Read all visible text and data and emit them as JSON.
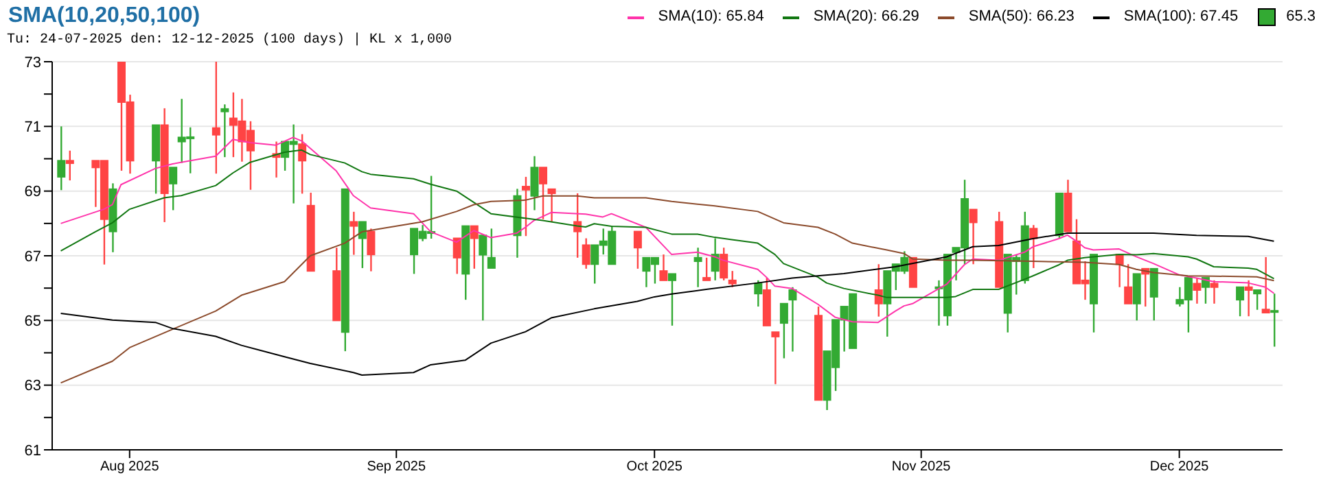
{
  "chart_data": {
    "type": "candlestick",
    "title": "SMA(10,20,50,100)",
    "subtitle": "Tu: 24-07-2025 den: 12-12-2025 (100 days) | KL x 1,000",
    "legend": "top right",
    "grid": "y",
    "marker": "none",
    "xlim": [
      "2025-07-23",
      "2025-12-13"
    ],
    "xticks": [
      {
        "value": "2025-08-01",
        "label": "Aug 2025"
      },
      {
        "value": "2025-09-01",
        "label": "Sep 2025"
      },
      {
        "value": "2025-10-01",
        "label": "Oct 2025"
      },
      {
        "value": "2025-11-01",
        "label": "Nov 2025"
      },
      {
        "value": "2025-12-01",
        "label": "Dec 2025"
      }
    ],
    "ylim": [
      61,
      73
    ],
    "yticks": [
      61,
      {
        "value": 62,
        "label": null
      },
      63,
      {
        "value": 64,
        "label": null
      },
      65,
      {
        "value": 66,
        "label": null
      },
      67,
      {
        "value": 68,
        "label": null
      },
      69,
      {
        "value": 70,
        "label": null
      },
      71,
      {
        "value": 72,
        "label": null
      },
      73
    ],
    "series": [
      {
        "name": "65.3",
        "type": "candlestick",
        "color": "#33aa33",
        "x": [
          "2025-07-24",
          "2025-07-25",
          "2025-07-28",
          "2025-07-29",
          "2025-07-30",
          "2025-07-31",
          "2025-08-01",
          "2025-08-04",
          "2025-08-05",
          "2025-08-06",
          "2025-08-07",
          "2025-08-08",
          "2025-08-11",
          "2025-08-12",
          "2025-08-13",
          "2025-08-14",
          "2025-08-15",
          "2025-08-18",
          "2025-08-19",
          "2025-08-20",
          "2025-08-21",
          "2025-08-22",
          "2025-08-25",
          "2025-08-26",
          "2025-08-27",
          "2025-08-28",
          "2025-08-29",
          "2025-09-03",
          "2025-09-04",
          "2025-09-05",
          "2025-09-08",
          "2025-09-09",
          "2025-09-10",
          "2025-09-11",
          "2025-09-12",
          "2025-09-15",
          "2025-09-16",
          "2025-09-17",
          "2025-09-18",
          "2025-09-19",
          "2025-09-22",
          "2025-09-23",
          "2025-09-24",
          "2025-09-25",
          "2025-09-26",
          "2025-09-29",
          "2025-09-30",
          "2025-10-01",
          "2025-10-02",
          "2025-10-03",
          "2025-10-06",
          "2025-10-07",
          "2025-10-08",
          "2025-10-09",
          "2025-10-10",
          "2025-10-13",
          "2025-10-14",
          "2025-10-15",
          "2025-10-16",
          "2025-10-17",
          "2025-10-20",
          "2025-10-21",
          "2025-10-22",
          "2025-10-23",
          "2025-10-24",
          "2025-10-27",
          "2025-10-28",
          "2025-10-29",
          "2025-10-30",
          "2025-10-31",
          "2025-11-03",
          "2025-11-04",
          "2025-11-05",
          "2025-11-06",
          "2025-11-07",
          "2025-11-10",
          "2025-11-11",
          "2025-11-12",
          "2025-11-13",
          "2025-11-14",
          "2025-11-17",
          "2025-11-18",
          "2025-11-19",
          "2025-11-20",
          "2025-11-21",
          "2025-11-24",
          "2025-11-25",
          "2025-11-26",
          "2025-11-27",
          "2025-11-28",
          "2025-12-01",
          "2025-12-02",
          "2025-12-03",
          "2025-12-04",
          "2025-12-05",
          "2025-12-08",
          "2025-12-09",
          "2025-12-10",
          "2025-12-11",
          "2025-12-12"
        ],
        "ohlc": [
          [
            69.44,
            71.0,
            69.03,
            69.94
          ],
          [
            69.94,
            70.25,
            69.33,
            69.86
          ],
          [
            69.94,
            69.94,
            68.51,
            69.73
          ],
          [
            69.94,
            69.94,
            66.73,
            68.13
          ],
          [
            67.75,
            69.24,
            67.11,
            69.06
          ],
          [
            73.0,
            73.0,
            69.63,
            71.75
          ],
          [
            71.75,
            71.98,
            69.54,
            69.94
          ],
          [
            69.94,
            71.04,
            68.92,
            71.04
          ],
          [
            71.04,
            71.56,
            68.04,
            68.93
          ],
          [
            69.23,
            69.73,
            68.41,
            69.73
          ],
          [
            70.53,
            71.85,
            69.87,
            70.66
          ],
          [
            70.66,
            70.97,
            69.55,
            70.67
          ],
          [
            70.95,
            73.0,
            69.54,
            70.74
          ],
          [
            71.46,
            71.68,
            70.05,
            71.54
          ],
          [
            71.25,
            72.05,
            70.05,
            71.04
          ],
          [
            71.16,
            71.85,
            69.91,
            70.53
          ],
          [
            70.87,
            71.16,
            69.04,
            70.25
          ],
          [
            70.15,
            70.53,
            69.42,
            70.05
          ],
          [
            70.05,
            70.53,
            69.63,
            70.53
          ],
          [
            70.45,
            71.06,
            68.62,
            70.53
          ],
          [
            70.45,
            70.76,
            68.92,
            69.94
          ],
          [
            68.55,
            68.95,
            66.53,
            66.53
          ],
          [
            66.53,
            67.25,
            65.0,
            65.0
          ],
          [
            64.64,
            69.06,
            64.05,
            69.06
          ],
          [
            68.05,
            68.36,
            67.03,
            67.92
          ],
          [
            67.54,
            68.05,
            66.62,
            68.05
          ],
          [
            67.75,
            67.84,
            66.52,
            67.04
          ],
          [
            67.04,
            67.84,
            66.44,
            67.84
          ],
          [
            67.54,
            67.95,
            67.45,
            67.75
          ],
          [
            67.74,
            69.47,
            67.53,
            67.74
          ],
          [
            67.54,
            67.54,
            66.44,
            66.94
          ],
          [
            66.44,
            67.92,
            65.64,
            67.92
          ],
          [
            67.92,
            67.92,
            66.6,
            67.54
          ],
          [
            67.03,
            67.63,
            65.0,
            67.63
          ],
          [
            66.62,
            67.84,
            66.62,
            66.94
          ],
          [
            67.63,
            69.07,
            66.94,
            68.85
          ],
          [
            69.14,
            69.44,
            67.61,
            69.04
          ],
          [
            68.85,
            70.08,
            68.41,
            69.73
          ],
          [
            69.73,
            69.73,
            68.13,
            69.23
          ],
          [
            69.06,
            69.06,
            68.04,
            68.93
          ],
          [
            68.05,
            68.93,
            66.94,
            67.75
          ],
          [
            67.33,
            67.54,
            66.6,
            66.74
          ],
          [
            66.74,
            67.33,
            66.14,
            67.33
          ],
          [
            67.33,
            67.84,
            67.04,
            67.45
          ],
          [
            66.74,
            67.92,
            66.74,
            67.75
          ],
          [
            67.75,
            67.75,
            66.6,
            67.25
          ],
          [
            66.53,
            66.94,
            66.03,
            66.94
          ],
          [
            66.74,
            66.94,
            66.14,
            66.94
          ],
          [
            66.53,
            67.04,
            66.24,
            66.24
          ],
          [
            66.24,
            66.44,
            64.84,
            66.44
          ],
          [
            66.83,
            67.25,
            66.03,
            66.94
          ],
          [
            66.32,
            66.94,
            66.24,
            66.24
          ],
          [
            66.53,
            67.54,
            66.24,
            67.04
          ],
          [
            67.04,
            67.25,
            66.24,
            66.32
          ],
          [
            66.24,
            66.53,
            66.03,
            66.14
          ],
          [
            65.83,
            66.24,
            65.43,
            66.14
          ],
          [
            65.94,
            66.32,
            64.84,
            64.84
          ],
          [
            64.64,
            64.64,
            63.03,
            64.5
          ],
          [
            64.92,
            65.52,
            63.83,
            65.52
          ],
          [
            65.64,
            66.03,
            64.04,
            65.94
          ],
          [
            65.15,
            65.43,
            62.54,
            62.54
          ],
          [
            62.54,
            64.05,
            62.23,
            64.05
          ],
          [
            63.55,
            65.02,
            62.82,
            65.02
          ],
          [
            65.02,
            65.43,
            64.04,
            65.43
          ],
          [
            64.14,
            65.82,
            64.14,
            65.82
          ],
          [
            65.94,
            66.74,
            65.12,
            65.52
          ],
          [
            65.52,
            66.53,
            64.5,
            66.53
          ],
          [
            66.53,
            66.74,
            65.94,
            66.74
          ],
          [
            66.53,
            67.14,
            66.44,
            66.94
          ],
          [
            66.94,
            66.94,
            66.03,
            66.03
          ],
          [
            66.03,
            66.24,
            64.84,
            66.03
          ],
          [
            65.15,
            67.04,
            64.84,
            67.04
          ],
          [
            67.11,
            67.25,
            66.24,
            67.25
          ],
          [
            67.25,
            69.35,
            66.74,
            68.76
          ],
          [
            68.43,
            68.43,
            66.74,
            68.03
          ],
          [
            68.05,
            68.36,
            66.03,
            66.03
          ],
          [
            65.23,
            67.04,
            64.63,
            67.04
          ],
          [
            66.83,
            67.04,
            65.8,
            66.94
          ],
          [
            66.24,
            68.36,
            66.14,
            67.92
          ],
          [
            67.84,
            67.95,
            66.62,
            67.54
          ],
          [
            67.63,
            68.93,
            67.54,
            68.93
          ],
          [
            68.93,
            69.35,
            67.75,
            67.75
          ],
          [
            67.45,
            68.13,
            66.14,
            66.14
          ],
          [
            66.24,
            66.83,
            65.64,
            66.14
          ],
          [
            65.52,
            67.04,
            64.63,
            67.04
          ],
          [
            67.04,
            67.04,
            66.03,
            66.74
          ],
          [
            66.03,
            66.74,
            65.52,
            65.52
          ],
          [
            65.52,
            66.44,
            65.0,
            66.44
          ],
          [
            66.6,
            66.6,
            65.43,
            66.44
          ],
          [
            65.73,
            66.6,
            65.0,
            66.6
          ],
          [
            65.52,
            66.03,
            65.43,
            65.64
          ],
          [
            65.64,
            66.32,
            64.63,
            66.32
          ],
          [
            66.14,
            66.32,
            65.52,
            65.94
          ],
          [
            66.03,
            66.32,
            65.52,
            66.32
          ],
          [
            66.14,
            66.24,
            65.52,
            66.03
          ],
          [
            65.64,
            66.03,
            65.13,
            66.03
          ],
          [
            66.03,
            66.24,
            65.13,
            65.94
          ],
          [
            65.83,
            65.94,
            65.33,
            65.94
          ],
          [
            65.34,
            66.96,
            65.24,
            65.24
          ],
          [
            65.3,
            65.83,
            64.19,
            65.3
          ]
        ],
        "colors": [
          "#33aa33",
          "#ff4444",
          "#ff4444",
          "#ff4444",
          "#33aa33",
          "#ff4444",
          "#ff4444",
          "#33aa33",
          "#ff4444",
          "#33aa33",
          "#33aa33",
          "#33aa33",
          "#ff4444",
          "#33aa33",
          "#ff4444",
          "#ff4444",
          "#ff4444",
          "#ff4444",
          "#33aa33",
          "#33aa33",
          "#ff4444",
          "#ff4444",
          "#ff4444",
          "#33aa33",
          "#ff4444",
          "#33aa33",
          "#ff4444",
          "#33aa33",
          "#33aa33",
          "#33aa33",
          "#ff4444",
          "#33aa33",
          "#ff4444",
          "#33aa33",
          "#33aa33",
          "#33aa33",
          "#ff4444",
          "#33aa33",
          "#ff4444",
          "#ff4444",
          "#ff4444",
          "#ff4444",
          "#33aa33",
          "#33aa33",
          "#33aa33",
          "#ff4444",
          "#33aa33",
          "#33aa33",
          "#ff4444",
          "#33aa33",
          "#33aa33",
          "#ff4444",
          "#33aa33",
          "#ff4444",
          "#ff4444",
          "#33aa33",
          "#ff4444",
          "#ff4444",
          "#33aa33",
          "#33aa33",
          "#ff4444",
          "#33aa33",
          "#33aa33",
          "#33aa33",
          "#33aa33",
          "#ff4444",
          "#33aa33",
          "#33aa33",
          "#33aa33",
          "#ff4444",
          "#33aa33",
          "#33aa33",
          "#33aa33",
          "#33aa33",
          "#ff4444",
          "#ff4444",
          "#33aa33",
          "#33aa33",
          "#33aa33",
          "#ff4444",
          "#33aa33",
          "#ff4444",
          "#ff4444",
          "#ff4444",
          "#33aa33",
          "#ff4444",
          "#ff4444",
          "#33aa33",
          "#ff4444",
          "#33aa33",
          "#33aa33",
          "#33aa33",
          "#ff4444",
          "#33aa33",
          "#ff4444",
          "#33aa33",
          "#ff4444",
          "#33aa33",
          "#ff4444",
          "#33aa33"
        ]
      },
      {
        "name": "SMA(10): 65.84",
        "type": "line",
        "color": "#ff33aa",
        "x": [
          "2025-07-24",
          "2025-07-29",
          "2025-07-30",
          "2025-07-31",
          "2025-08-04",
          "2025-08-06",
          "2025-08-11",
          "2025-08-13",
          "2025-08-15",
          "2025-08-18",
          "2025-08-20",
          "2025-08-21",
          "2025-08-25",
          "2025-08-27",
          "2025-08-29",
          "2025-09-03",
          "2025-09-05",
          "2025-09-08",
          "2025-09-09",
          "2025-09-10",
          "2025-09-12",
          "2025-09-15",
          "2025-09-16",
          "2025-09-17",
          "2025-09-19",
          "2025-09-23",
          "2025-09-25",
          "2025-09-26",
          "2025-09-30",
          "2025-10-02",
          "2025-10-03",
          "2025-10-06",
          "2025-10-08",
          "2025-10-09",
          "2025-10-13",
          "2025-10-14",
          "2025-10-15",
          "2025-10-17",
          "2025-10-20",
          "2025-10-22",
          "2025-10-24",
          "2025-10-27",
          "2025-10-29",
          "2025-10-30",
          "2025-10-31",
          "2025-11-04",
          "2025-11-06",
          "2025-11-07",
          "2025-11-10",
          "2025-11-13",
          "2025-11-14",
          "2025-11-17",
          "2025-11-18",
          "2025-11-19",
          "2025-11-20",
          "2025-11-21",
          "2025-11-24",
          "2025-11-26",
          "2025-11-28",
          "2025-12-01",
          "2025-12-03",
          "2025-12-05",
          "2025-12-09",
          "2025-12-11",
          "2025-12-12"
        ],
        "values": [
          68.0,
          68.44,
          68.58,
          69.2,
          69.7,
          69.84,
          70.08,
          70.6,
          70.5,
          70.42,
          70.66,
          70.55,
          69.63,
          68.86,
          68.48,
          68.3,
          67.74,
          67.42,
          67.6,
          67.78,
          67.56,
          67.7,
          67.88,
          68.09,
          68.34,
          68.29,
          68.2,
          68.3,
          67.88,
          67.32,
          67.04,
          67.11,
          66.97,
          66.86,
          66.58,
          66.34,
          66.06,
          65.99,
          65.5,
          65.1,
          64.96,
          64.94,
          65.29,
          65.45,
          65.52,
          66.13,
          66.72,
          66.9,
          66.86,
          67.11,
          67.28,
          67.53,
          67.64,
          67.46,
          67.25,
          67.18,
          67.21,
          66.97,
          66.76,
          66.41,
          66.31,
          66.2,
          66.16,
          66.03,
          65.84
        ]
      },
      {
        "name": "SMA(20): 66.29",
        "type": "line",
        "color": "#117711",
        "x": [
          "2025-07-24",
          "2025-07-28",
          "2025-07-30",
          "2025-08-01",
          "2025-08-05",
          "2025-08-07",
          "2025-08-11",
          "2025-08-13",
          "2025-08-15",
          "2025-08-19",
          "2025-08-21",
          "2025-08-22",
          "2025-08-26",
          "2025-08-28",
          "2025-08-29",
          "2025-09-03",
          "2025-09-05",
          "2025-09-08",
          "2025-09-10",
          "2025-09-12",
          "2025-09-16",
          "2025-09-18",
          "2025-09-22",
          "2025-09-23",
          "2025-09-24",
          "2025-09-26",
          "2025-09-30",
          "2025-10-02",
          "2025-10-03",
          "2025-10-06",
          "2025-10-08",
          "2025-10-10",
          "2025-10-13",
          "2025-10-15",
          "2025-10-16",
          "2025-10-20",
          "2025-10-21",
          "2025-10-23",
          "2025-10-27",
          "2025-10-28",
          "2025-10-30",
          "2025-11-03",
          "2025-11-04",
          "2025-11-05",
          "2025-11-07",
          "2025-11-10",
          "2025-11-13",
          "2025-11-14",
          "2025-11-17",
          "2025-11-18",
          "2025-11-20",
          "2025-11-24",
          "2025-11-26",
          "2025-11-28",
          "2025-12-02",
          "2025-12-03",
          "2025-12-05",
          "2025-12-09",
          "2025-12-10",
          "2025-12-12"
        ],
        "values": [
          67.15,
          67.74,
          68.02,
          68.44,
          68.79,
          68.86,
          69.17,
          69.56,
          69.89,
          70.2,
          70.27,
          70.13,
          69.87,
          69.6,
          69.52,
          69.38,
          69.21,
          69.0,
          68.65,
          68.3,
          68.16,
          68.09,
          67.92,
          67.89,
          67.99,
          67.91,
          67.88,
          67.74,
          67.67,
          67.67,
          67.57,
          67.5,
          67.39,
          67.04,
          66.76,
          66.34,
          66.16,
          65.99,
          65.78,
          65.71,
          65.71,
          65.71,
          65.71,
          65.74,
          65.96,
          65.96,
          66.27,
          66.38,
          66.72,
          66.86,
          66.94,
          67.04,
          67.03,
          67.07,
          66.97,
          66.9,
          66.66,
          66.62,
          66.58,
          66.29
        ]
      },
      {
        "name": "SMA(50): 66.23",
        "type": "line",
        "color": "#8b4a2b",
        "x": [
          "2025-07-24",
          "2025-07-30",
          "2025-08-01",
          "2025-08-06",
          "2025-08-11",
          "2025-08-14",
          "2025-08-19",
          "2025-08-22",
          "2025-08-26",
          "2025-08-28",
          "2025-09-04",
          "2025-09-08",
          "2025-09-10",
          "2025-09-12",
          "2025-09-16",
          "2025-09-18",
          "2025-09-22",
          "2025-09-24",
          "2025-09-30",
          "2025-10-03",
          "2025-10-08",
          "2025-10-13",
          "2025-10-16",
          "2025-10-20",
          "2025-10-22",
          "2025-10-24",
          "2025-10-28",
          "2025-10-30",
          "2025-10-31",
          "2025-11-04",
          "2025-11-07",
          "2025-11-14",
          "2025-11-20",
          "2025-11-24",
          "2025-11-26",
          "2025-11-28",
          "2025-12-02",
          "2025-12-05",
          "2025-12-10",
          "2025-12-12"
        ],
        "values": [
          63.07,
          63.74,
          64.16,
          64.73,
          65.29,
          65.78,
          66.2,
          67.0,
          67.39,
          67.74,
          68.05,
          68.37,
          68.58,
          68.68,
          68.72,
          68.85,
          68.85,
          68.79,
          68.79,
          68.68,
          68.54,
          68.37,
          68.02,
          67.88,
          67.67,
          67.39,
          67.18,
          67.07,
          66.9,
          66.86,
          66.86,
          66.83,
          66.8,
          66.73,
          66.58,
          66.48,
          66.38,
          66.37,
          66.35,
          66.23
        ]
      },
      {
        "name": "SMA(100): 67.45",
        "type": "line",
        "color": "#000000",
        "x": [
          "2025-07-24",
          "2025-07-30",
          "2025-08-04",
          "2025-08-06",
          "2025-08-11",
          "2025-08-14",
          "2025-08-19",
          "2025-08-22",
          "2025-08-27",
          "2025-08-28",
          "2025-09-03",
          "2025-09-05",
          "2025-09-09",
          "2025-09-12",
          "2025-09-16",
          "2025-09-19",
          "2025-09-24",
          "2025-09-29",
          "2025-10-01",
          "2025-10-03",
          "2025-10-07",
          "2025-10-13",
          "2025-10-17",
          "2025-10-23",
          "2025-10-29",
          "2025-11-04",
          "2025-11-07",
          "2025-11-10",
          "2025-11-14",
          "2025-11-18",
          "2025-11-24",
          "2025-11-28",
          "2025-12-03",
          "2025-12-09",
          "2025-12-12"
        ],
        "values": [
          65.22,
          65.01,
          64.94,
          64.75,
          64.51,
          64.23,
          63.88,
          63.67,
          63.39,
          63.31,
          63.39,
          63.63,
          63.77,
          64.3,
          64.65,
          65.08,
          65.36,
          65.59,
          65.73,
          65.82,
          65.96,
          66.16,
          66.31,
          66.45,
          66.66,
          66.97,
          67.28,
          67.32,
          67.53,
          67.7,
          67.7,
          67.7,
          67.63,
          67.6,
          67.45
        ]
      }
    ]
  }
}
